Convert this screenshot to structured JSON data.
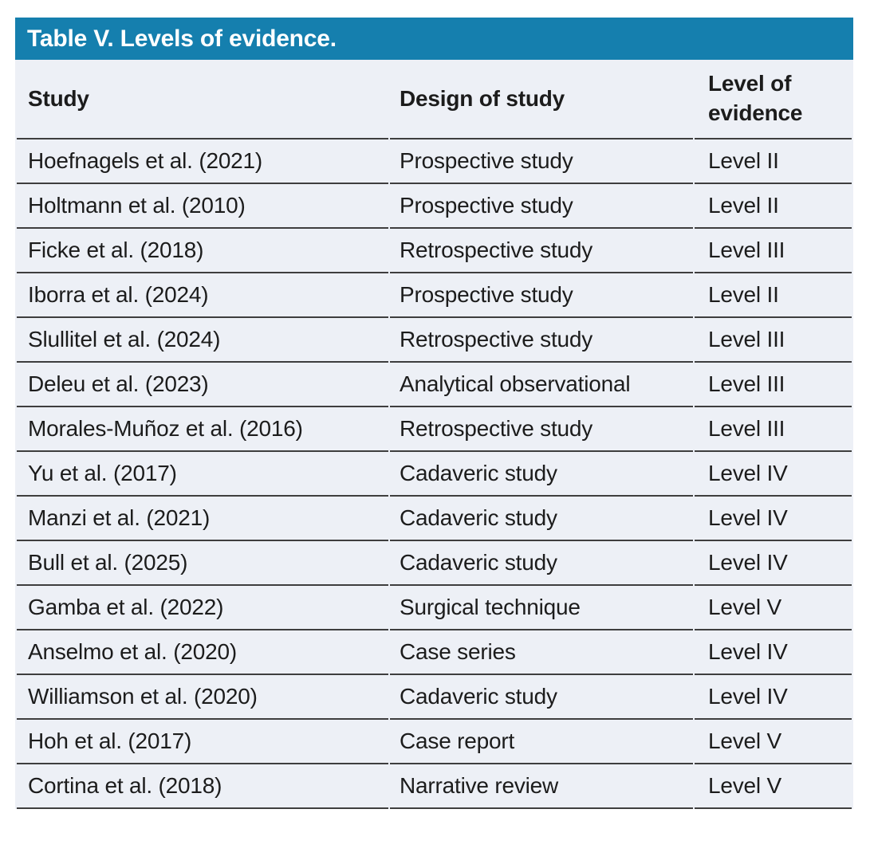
{
  "page": {
    "background": "#ffffff"
  },
  "table": {
    "title": "Table V. Levels of evidence.",
    "title_bar_color": "#157fae",
    "title_text_color": "#ffffff",
    "body_background": "#edf0f6",
    "rule_color": "#3e3e3e",
    "columns": [
      "Study",
      "Design of study",
      "Level of evidence"
    ],
    "rows": [
      {
        "study": "Hoefnagels et al. (2021)",
        "design": "Prospective study",
        "level": "Level II"
      },
      {
        "study": "Holtmann et al. (2010)",
        "design": "Prospective study",
        "level": "Level II"
      },
      {
        "study": "Ficke et al. (2018)",
        "design": "Retrospective study",
        "level": "Level III"
      },
      {
        "study": "Iborra et al. (2024)",
        "design": "Prospective study",
        "level": "Level II"
      },
      {
        "study": "Slullitel et al. (2024)",
        "design": "Retrospective study",
        "level": "Level III"
      },
      {
        "study": "Deleu et al. (2023)",
        "design": "Analytical observational",
        "level": "Level III"
      },
      {
        "study": "Morales-Muñoz et al. (2016)",
        "design": "Retrospective study",
        "level": "Level III"
      },
      {
        "study": "Yu et al. (2017)",
        "design": "Cadaveric study",
        "level": "Level IV"
      },
      {
        "study": "Manzi et al. (2021)",
        "design": "Cadaveric study",
        "level": "Level IV"
      },
      {
        "study": "Bull et al. (2025)",
        "design": "Cadaveric study",
        "level": "Level IV"
      },
      {
        "study": "Gamba et al. (2022)",
        "design": "Surgical technique",
        "level": "Level V"
      },
      {
        "study": "Anselmo et al. (2020)",
        "design": "Case series",
        "level": "Level IV"
      },
      {
        "study": "Williamson et al. (2020)",
        "design": "Cadaveric study",
        "level": "Level IV"
      },
      {
        "study": "Hoh et al. (2017)",
        "design": "Case report",
        "level": "Level V"
      },
      {
        "study": "Cortina et al. (2018)",
        "design": "Narrative review",
        "level": "Level V"
      }
    ]
  }
}
